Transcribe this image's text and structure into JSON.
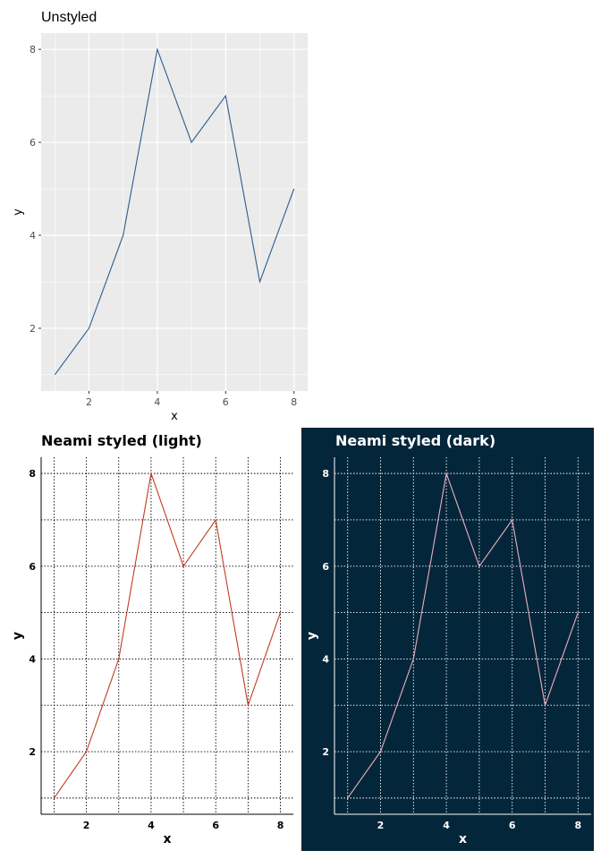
{
  "colors": {
    "unstyled_panel_bg": "#ebebeb",
    "unstyled_grid": "#ffffff",
    "unstyled_line": "#2c5d8f",
    "light_line": "#c23b22",
    "dark_bg": "#03263a",
    "dark_line": "#f0aebd",
    "dark_text": "#ffffff",
    "light_text": "#000000"
  },
  "chart_data": [
    {
      "id": "unstyled",
      "type": "line",
      "title": "Unstyled",
      "xlabel": "x",
      "ylabel": "y",
      "x": [
        1,
        2,
        3,
        4,
        5,
        6,
        7,
        8
      ],
      "y": [
        1,
        2,
        4,
        8,
        6,
        7,
        3,
        5
      ],
      "xlim": [
        0.6,
        8.4
      ],
      "ylim": [
        0.65,
        8.35
      ],
      "x_ticks": [
        2,
        4,
        6,
        8
      ],
      "y_ticks": [
        2,
        4,
        6,
        8
      ],
      "grid": true,
      "legend": "none"
    },
    {
      "id": "light",
      "type": "line",
      "title": "Neami styled (light)",
      "xlabel": "x",
      "ylabel": "y",
      "x": [
        1,
        2,
        3,
        4,
        5,
        6,
        7,
        8
      ],
      "y": [
        1,
        2,
        4,
        8,
        6,
        7,
        3,
        5
      ],
      "xlim": [
        0.6,
        8.4
      ],
      "ylim": [
        0.65,
        8.35
      ],
      "x_ticks": [
        2,
        4,
        6,
        8
      ],
      "y_ticks": [
        2,
        4,
        6,
        8
      ],
      "grid": "dotted",
      "legend": "none"
    },
    {
      "id": "dark",
      "type": "line",
      "title": "Neami styled (dark)",
      "xlabel": "x",
      "ylabel": "y",
      "x": [
        1,
        2,
        3,
        4,
        5,
        6,
        7,
        8
      ],
      "y": [
        1,
        2,
        4,
        8,
        6,
        7,
        3,
        5
      ],
      "xlim": [
        0.6,
        8.4
      ],
      "ylim": [
        0.65,
        8.35
      ],
      "x_ticks": [
        2,
        4,
        6,
        8
      ],
      "y_ticks": [
        2,
        4,
        6,
        8
      ],
      "grid": "dotted",
      "legend": "none"
    }
  ]
}
